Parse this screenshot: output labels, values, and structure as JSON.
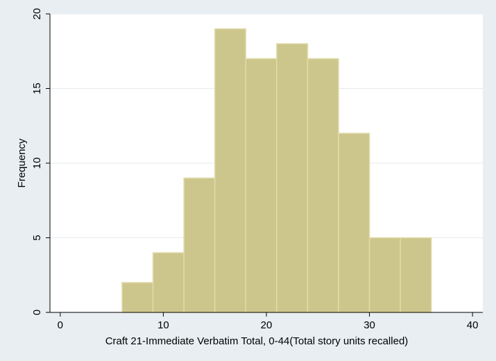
{
  "chart_data": {
    "type": "bar",
    "title": "",
    "xlabel": "Craft 21-Immediate Verbatim Total, 0-44(Total story units recalled)",
    "ylabel": "Frequency",
    "xlim": [
      -1,
      41
    ],
    "ylim": [
      0,
      20
    ],
    "x_ticks": [
      0,
      10,
      20,
      30,
      40
    ],
    "y_ticks": [
      0,
      5,
      10,
      15,
      20
    ],
    "grid": true,
    "bins": [
      {
        "start": 6,
        "end": 9,
        "value": 2
      },
      {
        "start": 9,
        "end": 12,
        "value": 4
      },
      {
        "start": 12,
        "end": 15,
        "value": 9
      },
      {
        "start": 15,
        "end": 18,
        "value": 19
      },
      {
        "start": 18,
        "end": 21,
        "value": 17
      },
      {
        "start": 21,
        "end": 24,
        "value": 18
      },
      {
        "start": 24,
        "end": 27,
        "value": 17
      },
      {
        "start": 27,
        "end": 30,
        "value": 12
      },
      {
        "start": 30,
        "end": 33,
        "value": 5
      },
      {
        "start": 33,
        "end": 36,
        "value": 5
      }
    ],
    "colors": {
      "outer_background": "#e8eef2",
      "plot_background": "#ffffff",
      "bar_fill": "#cdc68c",
      "bar_edge": "#e0dcaa",
      "grid": "#e6ebee",
      "axis": "#000000"
    }
  }
}
